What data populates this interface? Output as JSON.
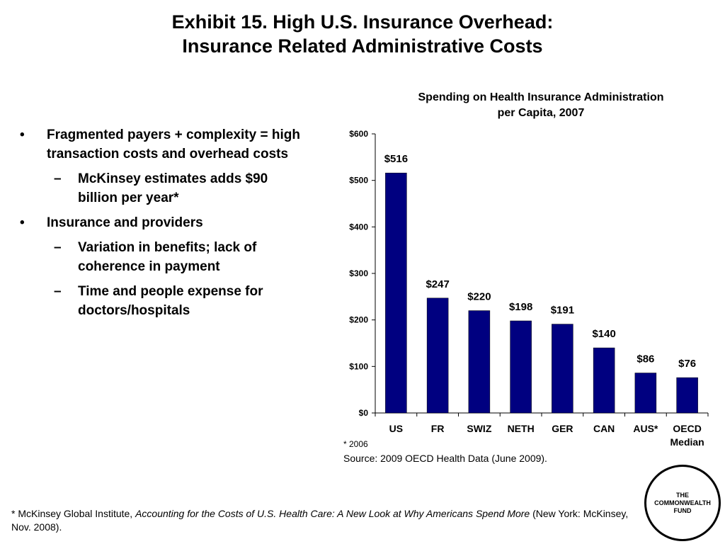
{
  "slide": {
    "title_line1": "Exhibit 15. High U.S. Insurance Overhead:",
    "title_line2": "Insurance Related Administrative Costs"
  },
  "bullets": [
    {
      "text": "Fragmented payers + complexity = high transaction costs and overhead costs",
      "marker": "•",
      "sub": [
        {
          "text": "McKinsey estimates adds $90 billion per year*",
          "marker": "–"
        }
      ]
    },
    {
      "text": "Insurance and providers",
      "marker": "•",
      "sub": [
        {
          "text": "Variation in benefits; lack of coherence in payment",
          "marker": "–"
        },
        {
          "text": "Time and people expense for doctors/hospitals",
          "marker": "–"
        }
      ]
    }
  ],
  "chart_data": {
    "type": "bar",
    "title_line1": "Spending on Health Insurance Administration",
    "title_line2": "per Capita, 2007",
    "categories": [
      "US",
      "FR",
      "SWIZ",
      "NETH",
      "GER",
      "CAN",
      "AUS*",
      "OECD Median"
    ],
    "values": [
      516,
      247,
      220,
      198,
      191,
      140,
      86,
      76
    ],
    "data_labels": [
      "$516",
      "$247",
      "$220",
      "$198",
      "$191",
      "$140",
      "$86",
      "$76"
    ],
    "y_ticks": [
      0,
      100,
      200,
      300,
      400,
      500,
      600
    ],
    "y_tick_labels": [
      "$0",
      "$100",
      "$200",
      "$300",
      "$400",
      "$500",
      "$600"
    ],
    "ylim": [
      0,
      600
    ],
    "xlabel": "",
    "ylabel": "",
    "grid": false,
    "bar_color": "#000080"
  },
  "notes": {
    "asterisk_note": "* 2006",
    "source": "Source: 2009 OECD Health Data (June 2009)."
  },
  "footnote": {
    "prefix": "* McKinsey Global Institute, ",
    "italic": "Accounting for the Costs of U.S. Health Care: A New Look at Why Americans Spend More",
    "suffix": " (New York: McKinsey, Nov. 2008)."
  },
  "logo": {
    "line1": "THE",
    "line2": "COMMONWEALTH",
    "line3": "FUND"
  }
}
